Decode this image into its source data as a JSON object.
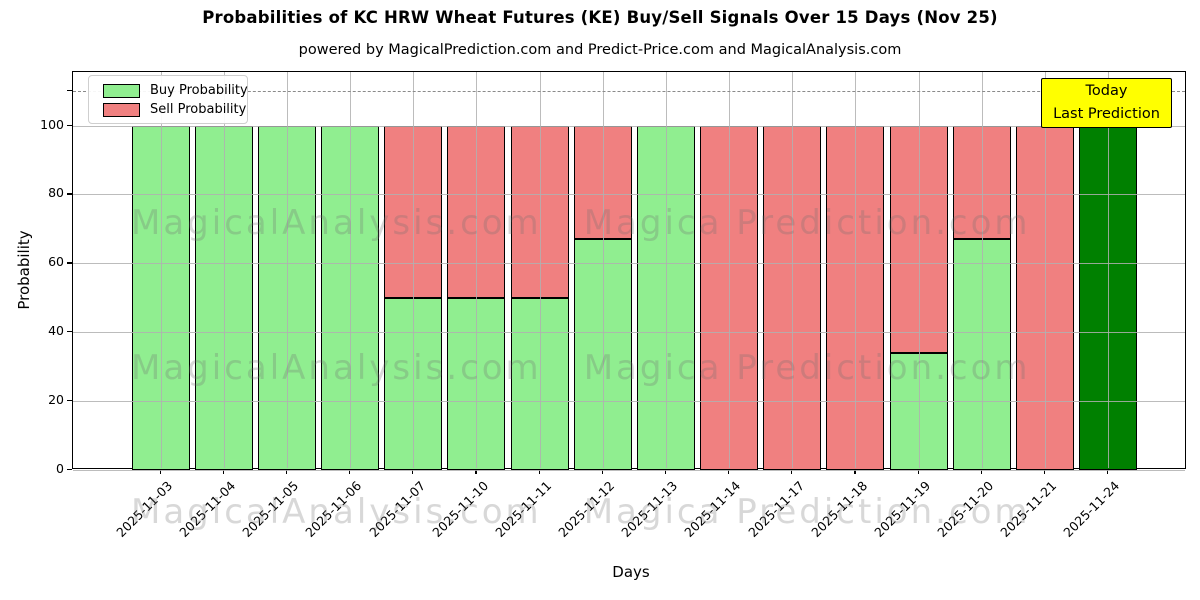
{
  "chart_data": {
    "type": "bar",
    "stacked": true,
    "title": "Probabilities of KC HRW Wheat Futures (KE) Buy/Sell Signals Over 15 Days (Nov 25)",
    "subtitle": "powered by MagicalPrediction.com and Predict-Price.com and MagicalAnalysis.com",
    "xlabel": "Days",
    "ylabel": "Probability",
    "categories": [
      "2025-11-03",
      "2025-11-04",
      "2025-11-05",
      "2025-11-06",
      "2025-11-07",
      "2025-11-10",
      "2025-11-11",
      "2025-11-12",
      "2025-11-13",
      "2025-11-14",
      "2025-11-17",
      "2025-11-18",
      "2025-11-19",
      "2025-11-20",
      "2025-11-21",
      "2025-11-24"
    ],
    "series": [
      {
        "name": "Buy Probability",
        "color": "#90EE90",
        "values": [
          100,
          100,
          100,
          100,
          50,
          50,
          50,
          67,
          100,
          0,
          0,
          0,
          34,
          67,
          0,
          100
        ]
      },
      {
        "name": "Sell Probability",
        "color": "#F08080",
        "values": [
          0,
          0,
          0,
          0,
          50,
          50,
          50,
          33,
          0,
          100,
          100,
          100,
          66,
          33,
          100,
          0
        ]
      }
    ],
    "today_bar": {
      "category": "2025-11-24",
      "color": "#008000",
      "value": 100
    },
    "yticks": [
      0,
      20,
      40,
      60,
      80,
      100
    ],
    "ylim": [
      0,
      115.5
    ],
    "dashed_line_y": 110,
    "grid": true,
    "legend_position": "upper left",
    "bar_edge_color": "#000000"
  },
  "legend": {
    "buy_label": "Buy Probability",
    "sell_label": "Sell Probability"
  },
  "annotation_box": {
    "line1": "Today",
    "line2": "Last Prediction",
    "bg_color": "#ffff00"
  },
  "watermarks": {
    "left_text": "MagicalAnalysis.com",
    "right_text": "Magica Prediction.com"
  },
  "colors": {
    "buy": "#90EE90",
    "sell": "#F08080",
    "today": "#008000",
    "grid": "#b0b0b0",
    "dashed_line": "#8a8a8a",
    "annotation_bg": "#ffff00"
  }
}
